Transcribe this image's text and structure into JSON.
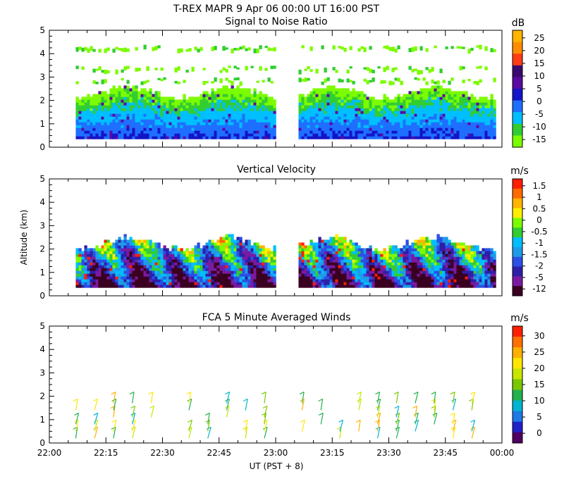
{
  "header": {
    "title": "T-REX   MAPR   9 Apr 06   00:00 UT   16:00   PST"
  },
  "colors": {
    "snr": [
      "#7cfc00",
      "#32cd32",
      "#00bfff",
      "#1f6fff",
      "#1414c8",
      "#5a0aa0",
      "#3a0a6e",
      "#ff3c14",
      "#ff8c00",
      "#ffb400"
    ],
    "vel": [
      "#3a0020",
      "#7a1aa0",
      "#2e1ea8",
      "#2a50e6",
      "#1e9be6",
      "#00bfff",
      "#32cd32",
      "#7cfc00",
      "#ffee00",
      "#ffb400",
      "#ff6a00",
      "#ff1e00"
    ],
    "wind": [
      "#500060",
      "#2020c8",
      "#1e78e6",
      "#00b4d2",
      "#22b14c",
      "#7cc800",
      "#c8e600",
      "#ffe600",
      "#ffb000",
      "#ff7000",
      "#ff2000"
    ]
  },
  "chart_data": [
    {
      "type": "heatmap",
      "title": "Signal to Noise Ratio",
      "unit": "dB",
      "ylim": [
        0,
        5
      ],
      "yticks": [
        "0",
        "1",
        "2",
        "3",
        "4",
        "5"
      ],
      "ylabel": "",
      "xlim": [
        "22:00",
        "00:00"
      ],
      "colorbar_ticks": [
        "25",
        "20",
        "15",
        "10",
        "5",
        "0",
        "-5",
        "-10",
        "-15"
      ],
      "data_gap_ut": [
        "23:00",
        "23:05"
      ],
      "echo_top_km": 2.3,
      "clutter_layers_km": [
        2.8,
        3.3,
        4.2
      ]
    },
    {
      "type": "heatmap",
      "title": "Vertical Velocity",
      "unit": "m/s",
      "ylim": [
        0,
        5
      ],
      "yticks": [
        "0",
        "1",
        "2",
        "3",
        "4",
        "5"
      ],
      "ylabel": "Altitude (km)",
      "xlim": [
        "22:00",
        "00:00"
      ],
      "colorbar_ticks": [
        "1.5",
        "1",
        "0.5",
        "0",
        "-0.5",
        "-1",
        "-1.5",
        "-2",
        "-5",
        "-12"
      ],
      "data_gap_ut": [
        "23:00",
        "23:05"
      ],
      "echo_top_km": 2.2
    },
    {
      "type": "scatter",
      "title": "FCA 5 Minute Averaged Winds",
      "unit": "m/s",
      "ylim": [
        0,
        5
      ],
      "yticks": [
        "0",
        "1",
        "2",
        "3",
        "4",
        "5"
      ],
      "xlim": [
        "22:00",
        "00:00"
      ],
      "xticks": [
        "22:00",
        "22:15",
        "22:30",
        "22:45",
        "23:00",
        "23:15",
        "23:30",
        "23:45",
        "00:00"
      ],
      "xlabel": "UT  (PST + 8)",
      "colorbar_ticks": [
        "30",
        "25",
        "20",
        "15",
        "10",
        "5",
        "0"
      ],
      "barb_columns_ut": [
        "22:07",
        "22:12",
        "22:17",
        "22:22",
        "22:27",
        "22:37",
        "22:42",
        "22:47",
        "22:52",
        "22:57",
        "23:07",
        "23:12",
        "23:17",
        "23:22",
        "23:27",
        "23:32",
        "23:37",
        "23:42",
        "23:47",
        "23:52"
      ],
      "barb_levels_km": [
        0.2,
        0.5,
        0.8,
        1.1,
        1.4,
        1.7
      ]
    }
  ]
}
